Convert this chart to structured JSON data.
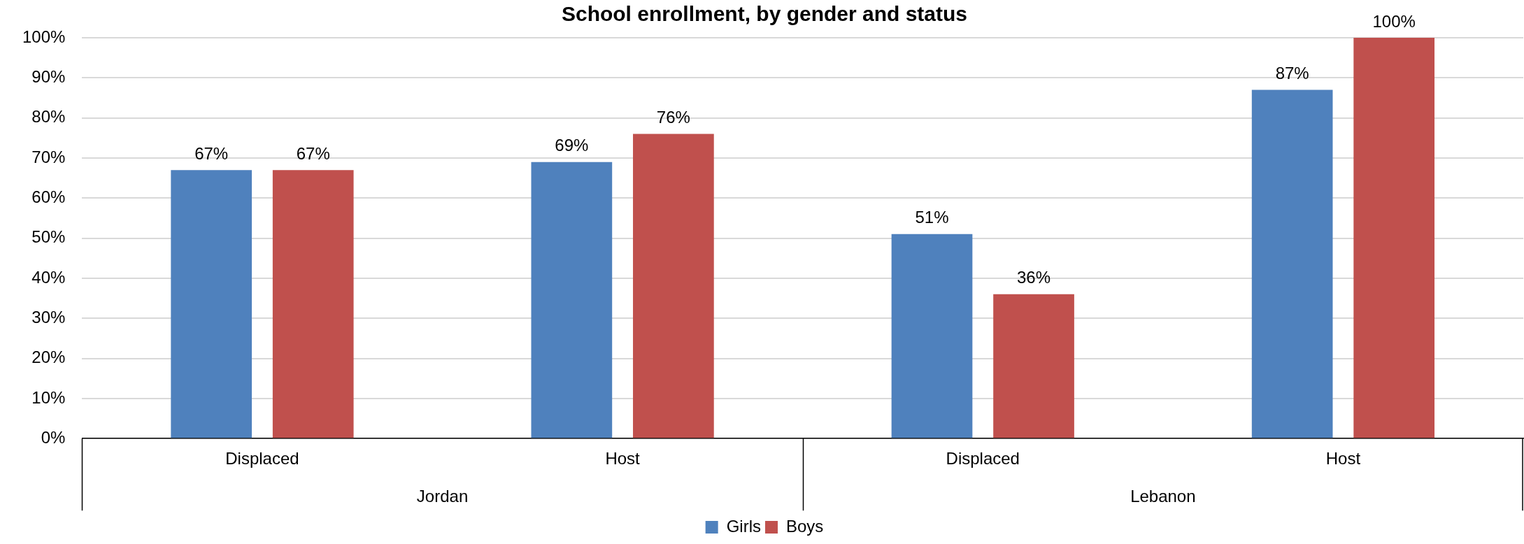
{
  "chart_data": {
    "type": "bar",
    "title": "School enrollment, by gender and status",
    "categories": [
      "Displaced",
      "Host",
      "Displaced",
      "Host"
    ],
    "series": [
      {
        "name": "Girls",
        "color": "#4f81bd",
        "values": [
          67,
          69,
          51,
          87
        ],
        "value_labels": [
          "67%",
          "69%",
          "51%",
          "87%"
        ]
      },
      {
        "name": "Boys",
        "color": "#c0504d",
        "values": [
          67,
          76,
          36,
          100
        ],
        "value_labels": [
          "67%",
          "76%",
          "36%",
          "100%"
        ]
      }
    ],
    "ylim": [
      0,
      100
    ],
    "yticks": [
      {
        "value": 0,
        "label": "0%"
      },
      {
        "value": 10,
        "label": "10%"
      },
      {
        "value": 20,
        "label": "20%"
      },
      {
        "value": 30,
        "label": "30%"
      },
      {
        "value": 40,
        "label": "40%"
      },
      {
        "value": 50,
        "label": "50%"
      },
      {
        "value": 60,
        "label": "60%"
      },
      {
        "value": 70,
        "label": "70%"
      },
      {
        "value": 80,
        "label": "80%"
      },
      {
        "value": 90,
        "label": "90%"
      },
      {
        "value": 100,
        "label": "100%"
      }
    ],
    "grid": "y",
    "legend": "bottom",
    "annotations": [
      "Jordan",
      "Lebanon"
    ]
  }
}
